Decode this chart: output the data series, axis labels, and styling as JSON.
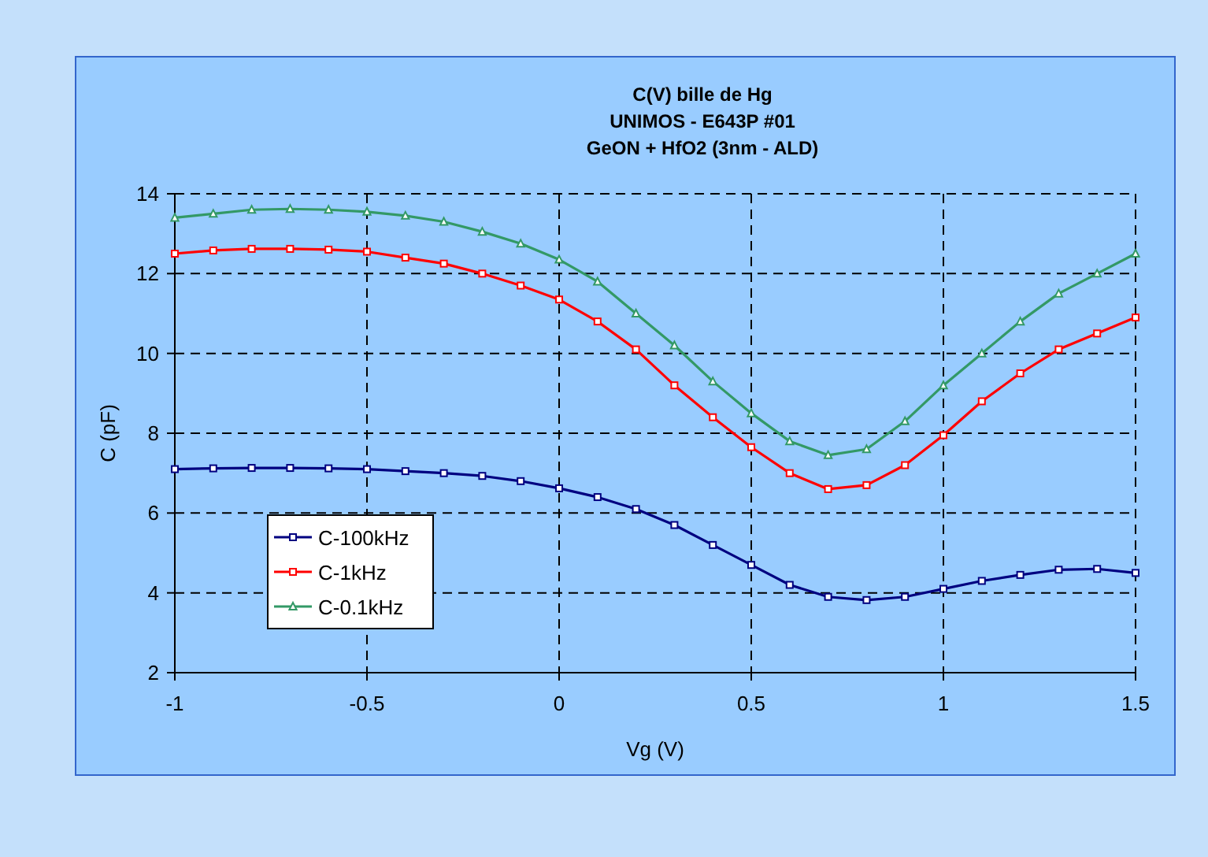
{
  "chart_data": {
    "type": "line",
    "title": "C(V) bille de Hg\nUNIMOS - E643P #01\nGeON + HfO2 (3nm - ALD)",
    "xlabel": "Vg (V)",
    "ylabel": "C (pF)",
    "x": [
      -1,
      -0.9,
      -0.8,
      -0.7,
      -0.6,
      -0.5,
      -0.4,
      -0.3,
      -0.2,
      -0.1,
      0,
      0.1,
      0.2,
      0.3,
      0.4,
      0.5,
      0.6,
      0.7,
      0.8,
      0.9,
      1,
      1.1,
      1.2,
      1.3,
      1.4,
      1.5
    ],
    "series": [
      {
        "name": "C-100kHz",
        "color": "#000080",
        "marker": "square",
        "values": [
          7.1,
          7.12,
          7.13,
          7.13,
          7.12,
          7.1,
          7.05,
          7.0,
          6.93,
          6.8,
          6.62,
          6.4,
          6.1,
          5.7,
          5.2,
          4.7,
          4.2,
          3.9,
          3.82,
          3.9,
          4.1,
          4.3,
          4.45,
          4.58,
          4.6,
          4.5
        ]
      },
      {
        "name": "C-1kHz",
        "color": "#ff0000",
        "marker": "square",
        "values": [
          12.5,
          12.58,
          12.62,
          12.62,
          12.6,
          12.55,
          12.4,
          12.25,
          12.0,
          11.7,
          11.35,
          10.8,
          10.1,
          9.2,
          8.4,
          7.65,
          7.0,
          6.6,
          6.7,
          7.2,
          7.95,
          8.8,
          9.5,
          10.1,
          10.5,
          10.9
        ]
      },
      {
        "name": "C-0.1kHz",
        "color": "#339966",
        "marker": "triangle",
        "values": [
          13.4,
          13.5,
          13.6,
          13.62,
          13.6,
          13.55,
          13.45,
          13.3,
          13.05,
          12.75,
          12.35,
          11.8,
          11.0,
          10.2,
          9.3,
          8.5,
          7.8,
          7.45,
          7.6,
          8.3,
          9.2,
          10.0,
          10.8,
          11.5,
          12.0,
          12.5
        ]
      }
    ],
    "xlim": [
      -1,
      1.5
    ],
    "xticks": [
      -1,
      -0.5,
      0,
      0.5,
      1,
      1.5
    ],
    "ylim": [
      2,
      14
    ],
    "yticks": [
      2,
      4,
      6,
      8,
      10,
      12,
      14
    ],
    "grid": true,
    "line_style": "solid",
    "legend": "bottom left"
  }
}
